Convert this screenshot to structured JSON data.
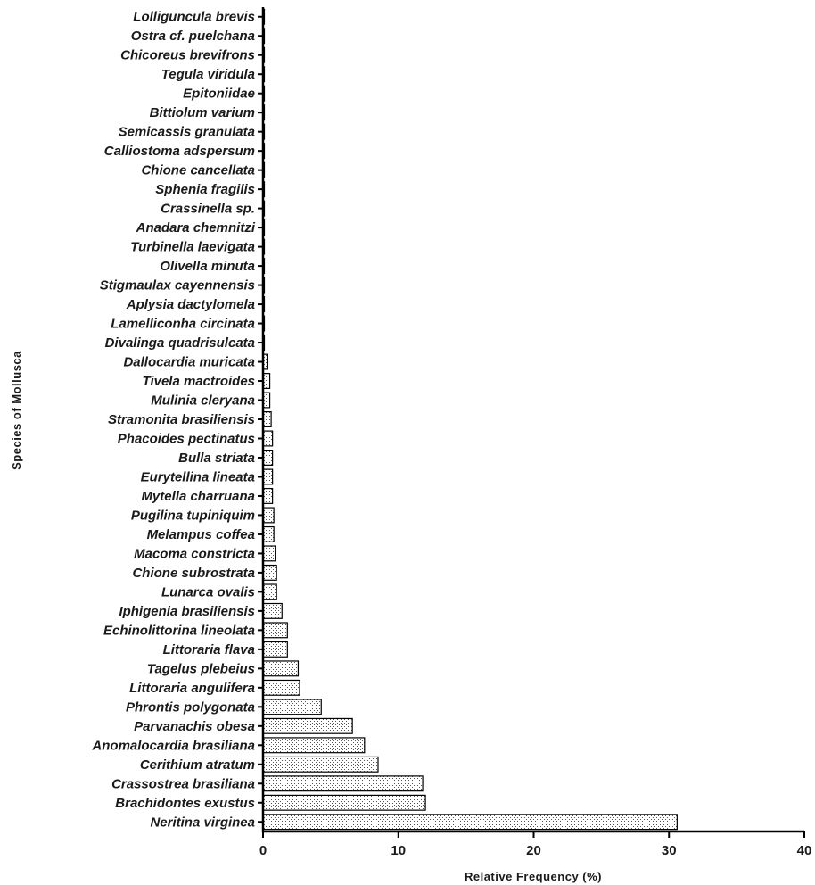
{
  "chart_data": {
    "type": "bar",
    "orientation": "horizontal",
    "title": "",
    "xlabel": "Relative Frequency (%)",
    "ylabel": "Species of Mollusca",
    "xlim": [
      0,
      40
    ],
    "xticks": [
      0,
      10,
      20,
      30,
      40
    ],
    "grid": false,
    "legend": "none",
    "bar_pattern": "dotted stipple",
    "categories": [
      "Lolliguncula brevis",
      "Ostra cf. puelchana",
      "Chicoreus brevifrons",
      "Tegula viridula",
      "Epitoniidae",
      "Bittiolum varium",
      "Semicassis granulata",
      "Calliostoma adspersum",
      "Chione cancellata",
      "Sphenia fragilis",
      "Crassinella sp.",
      "Anadara chemnitzi",
      "Turbinella laevigata",
      "Olivella minuta",
      "Stigmaulax cayennensis",
      "Aplysia dactylomela",
      "Lamelliconha circinata",
      "Divalinga quadrisulcata",
      "Dallocardia muricata",
      "Tivela mactroides",
      "Mulinia cleryana",
      "Stramonita brasiliensis",
      "Phacoides pectinatus",
      "Bulla striata",
      "Eurytellina lineata",
      "Mytella charruana",
      "Pugilina tupiniquim",
      "Melampus coffea",
      "Macoma constricta",
      "Chione subrostrata",
      "Lunarca ovalis",
      "Iphigenia brasiliensis",
      "Echinolittorina lineolata",
      "Littoraria flava",
      "Tagelus plebeius",
      "Littoraria angulifera",
      "Phrontis polygonata",
      "Parvanachis obesa",
      "Anomalocardia brasiliana",
      "Cerithium atratum",
      "Crassostrea brasiliana",
      "Brachidontes exustus",
      "Neritina virginea"
    ],
    "values": [
      0.05,
      0.05,
      0.05,
      0.05,
      0.05,
      0.05,
      0.05,
      0.05,
      0.05,
      0.05,
      0.05,
      0.05,
      0.05,
      0.05,
      0.05,
      0.05,
      0.05,
      0.05,
      0.3,
      0.5,
      0.5,
      0.6,
      0.7,
      0.7,
      0.7,
      0.7,
      0.8,
      0.8,
      0.9,
      1.0,
      1.0,
      1.4,
      1.8,
      1.8,
      2.6,
      2.7,
      4.3,
      6.6,
      7.5,
      8.5,
      11.8,
      12.0,
      30.6
    ]
  }
}
